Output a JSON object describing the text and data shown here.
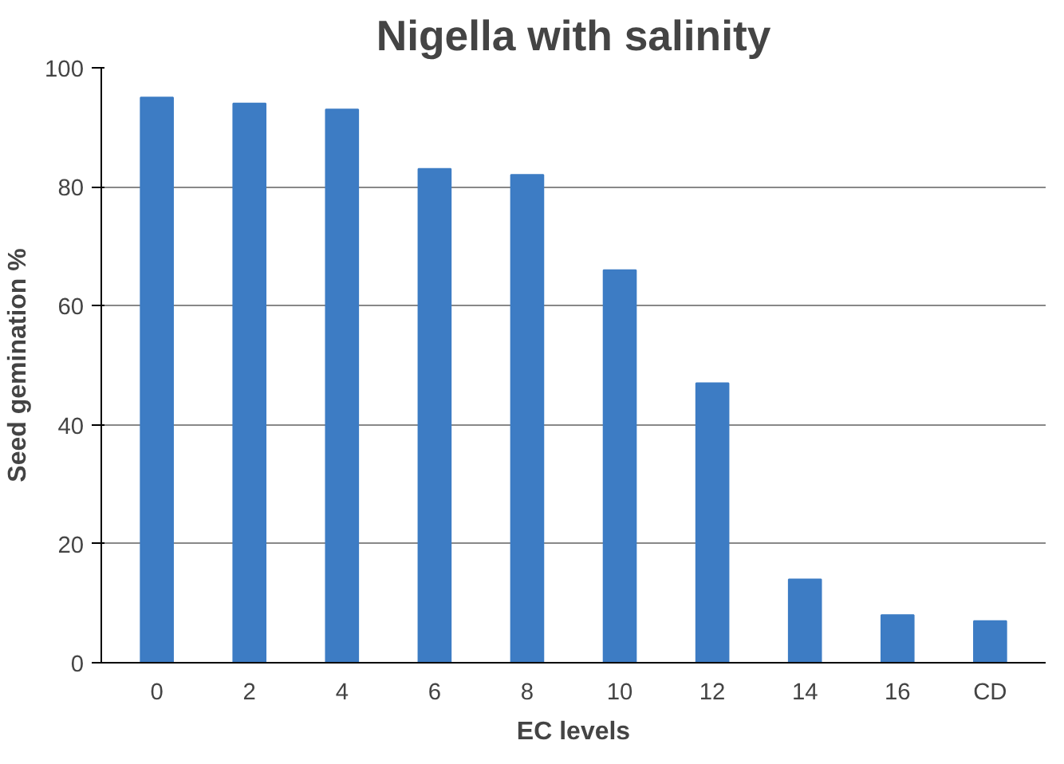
{
  "chart_data": {
    "type": "bar",
    "title": "Nigella with salinity",
    "xlabel": "EC levels",
    "ylabel": "Seed gemination %",
    "categories": [
      "0",
      "2",
      "4",
      "6",
      "8",
      "10",
      "12",
      "14",
      "16",
      "CD"
    ],
    "values": [
      95,
      94,
      93,
      83,
      82,
      66,
      47,
      14,
      8,
      7
    ],
    "color": "#3d7cc4",
    "ylim": [
      0,
      100
    ],
    "yticks": [
      0,
      20,
      40,
      60,
      80,
      100
    ],
    "grid": "y"
  }
}
